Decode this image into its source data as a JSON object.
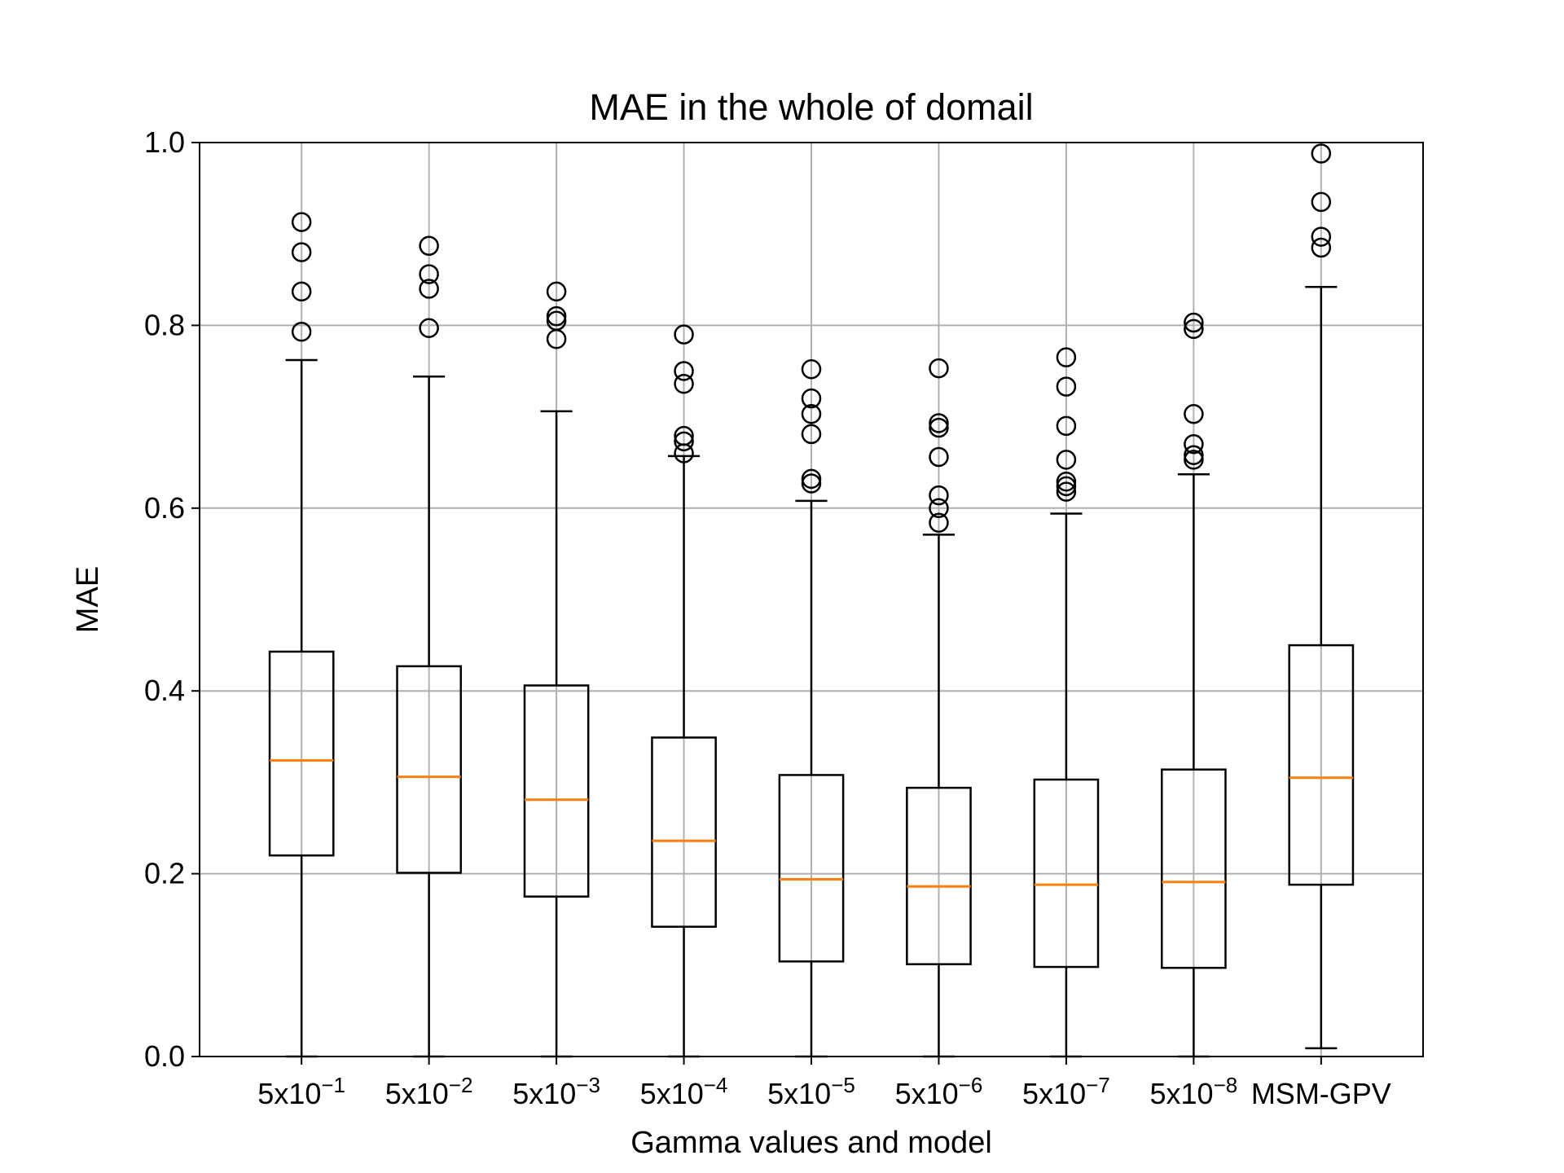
{
  "chart_data": {
    "type": "box",
    "title": "MAE in the whole of domail",
    "xlabel": "Gamma values and model",
    "ylabel": "MAE",
    "ylim": [
      0.0,
      1.0
    ],
    "yticks": [
      "0.0",
      "0.2",
      "0.4",
      "0.6",
      "0.8",
      "1.0"
    ],
    "grid": true,
    "categories": [
      {
        "base": "5x10",
        "exp": "−1"
      },
      {
        "base": "5x10",
        "exp": "−2"
      },
      {
        "base": "5x10",
        "exp": "−3"
      },
      {
        "base": "5x10",
        "exp": "−4"
      },
      {
        "base": "5x10",
        "exp": "−5"
      },
      {
        "base": "5x10",
        "exp": "−6"
      },
      {
        "base": "5x10",
        "exp": "−7"
      },
      {
        "base": "5x10",
        "exp": "−8"
      },
      {
        "base": "MSM-GPV",
        "exp": ""
      }
    ],
    "boxes": [
      {
        "whislo": 0.0,
        "q1": 0.22,
        "med": 0.324,
        "q3": 0.443,
        "whishi": 0.762,
        "fliers": [
          0.793,
          0.837,
          0.88,
          0.913
        ]
      },
      {
        "whislo": 0.0,
        "q1": 0.201,
        "med": 0.306,
        "q3": 0.427,
        "whishi": 0.744,
        "fliers": [
          0.797,
          0.84,
          0.856,
          0.887
        ]
      },
      {
        "whislo": 0.0,
        "q1": 0.175,
        "med": 0.281,
        "q3": 0.406,
        "whishi": 0.706,
        "fliers": [
          0.785,
          0.805,
          0.81,
          0.837
        ]
      },
      {
        "whislo": 0.0,
        "q1": 0.142,
        "med": 0.236,
        "q3": 0.349,
        "whishi": 0.657,
        "fliers": [
          0.66,
          0.673,
          0.679,
          0.736,
          0.75,
          0.79
        ]
      },
      {
        "whislo": 0.0,
        "q1": 0.104,
        "med": 0.194,
        "q3": 0.308,
        "whishi": 0.608,
        "fliers": [
          0.627,
          0.632,
          0.681,
          0.703,
          0.72,
          0.752
        ]
      },
      {
        "whislo": 0.0,
        "q1": 0.101,
        "med": 0.186,
        "q3": 0.294,
        "whishi": 0.571,
        "fliers": [
          0.584,
          0.6,
          0.614,
          0.656,
          0.688,
          0.693,
          0.753
        ]
      },
      {
        "whislo": 0.0,
        "q1": 0.098,
        "med": 0.188,
        "q3": 0.303,
        "whishi": 0.594,
        "fliers": [
          0.618,
          0.624,
          0.629,
          0.653,
          0.69,
          0.733,
          0.765
        ]
      },
      {
        "whislo": 0.0,
        "q1": 0.097,
        "med": 0.191,
        "q3": 0.314,
        "whishi": 0.637,
        "fliers": [
          0.653,
          0.658,
          0.67,
          0.703,
          0.796,
          0.803
        ]
      },
      {
        "whislo": 0.009,
        "q1": 0.188,
        "med": 0.305,
        "q3": 0.45,
        "whishi": 0.842,
        "fliers": [
          0.885,
          0.897,
          0.935,
          0.988
        ]
      }
    ],
    "colors": {
      "box": "#000000",
      "median": "#ff7f0e",
      "grid": "#b0b0b0",
      "flier": "#000000"
    }
  }
}
